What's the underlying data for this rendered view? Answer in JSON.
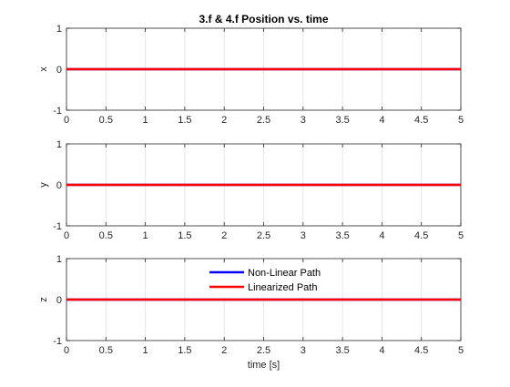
{
  "chart_data": [
    {
      "type": "line",
      "title": "3.f & 4.f Position vs. time",
      "xlabel": "",
      "ylabel": "x",
      "xlim": [
        0,
        5
      ],
      "ylim": [
        -1,
        1
      ],
      "x_ticks": [
        0,
        0.5,
        1,
        1.5,
        2,
        2.5,
        3,
        3.5,
        4,
        4.5,
        5
      ],
      "x_tick_labels": [
        "0",
        "0.5",
        "1",
        "1.5",
        "2",
        "2.5",
        "3",
        "3.5",
        "4",
        "4.5",
        "5"
      ],
      "y_ticks": [
        -1,
        0,
        1
      ],
      "y_tick_labels": [
        "-1",
        "0",
        "1"
      ],
      "grid": "vertical",
      "series": [
        {
          "x": [
            0,
            5
          ],
          "y": [
            0,
            0
          ],
          "color": "#0000ff"
        },
        {
          "x": [
            0,
            5
          ],
          "y": [
            0,
            0
          ],
          "color": "#ff0000"
        }
      ]
    },
    {
      "type": "line",
      "title": "",
      "xlabel": "",
      "ylabel": "y",
      "xlim": [
        0,
        5
      ],
      "ylim": [
        -1,
        1
      ],
      "x_ticks": [
        0,
        0.5,
        1,
        1.5,
        2,
        2.5,
        3,
        3.5,
        4,
        4.5,
        5
      ],
      "x_tick_labels": [
        "0",
        "0.5",
        "1",
        "1.5",
        "2",
        "2.5",
        "3",
        "3.5",
        "4",
        "4.5",
        "5"
      ],
      "y_ticks": [
        -1,
        0,
        1
      ],
      "y_tick_labels": [
        "-1",
        "0",
        "1"
      ],
      "grid": "vertical",
      "series": [
        {
          "x": [
            0,
            5
          ],
          "y": [
            0,
            0
          ],
          "color": "#0000ff"
        },
        {
          "x": [
            0,
            5
          ],
          "y": [
            0,
            0
          ],
          "color": "#ff0000"
        }
      ]
    },
    {
      "type": "line",
      "title": "",
      "xlabel": "time [s]",
      "ylabel": "z",
      "xlim": [
        0,
        5
      ],
      "ylim": [
        -1,
        1
      ],
      "x_ticks": [
        0,
        0.5,
        1,
        1.5,
        2,
        2.5,
        3,
        3.5,
        4,
        4.5,
        5
      ],
      "x_tick_labels": [
        "0",
        "0.5",
        "1",
        "1.5",
        "2",
        "2.5",
        "3",
        "3.5",
        "4",
        "4.5",
        "5"
      ],
      "y_ticks": [
        -1,
        0,
        1
      ],
      "y_tick_labels": [
        "-1",
        "0",
        "1"
      ],
      "grid": "vertical",
      "legend": "top-center",
      "series": [
        {
          "name": "Non-Linear Path",
          "x": [
            0,
            5
          ],
          "y": [
            0,
            0
          ],
          "color": "#0000ff"
        },
        {
          "name": "Linearized Path",
          "x": [
            0,
            5
          ],
          "y": [
            0,
            0
          ],
          "color": "#ff0000"
        }
      ]
    }
  ]
}
